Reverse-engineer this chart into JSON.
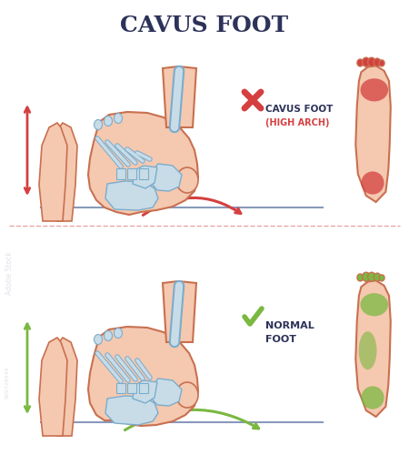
{
  "title": "CAVUS FOOT",
  "title_color": "#2d3259",
  "title_fontsize": 18,
  "background_color": "#ffffff",
  "label_cavus_line1": "CAVUS FOOT",
  "label_cavus_line2": "(HIGH ARCH)",
  "label_normal_line1": "NORMAL",
  "label_normal_line2": "FOOT",
  "label_color": "#2d3259",
  "skin_color": "#f5c8b0",
  "skin_dark": "#e8a88a",
  "bone_fill": "#c8dce8",
  "bone_stroke": "#7aadcc",
  "red_color": "#d44040",
  "green_color": "#7ab840",
  "foot_outline": "#c87050",
  "ground_color": "#8899bb",
  "divider_color": "#e08080",
  "watermark_color": "#ccccdd",
  "adobe_text": "Adobe Stock",
  "stock_num": "509729543"
}
